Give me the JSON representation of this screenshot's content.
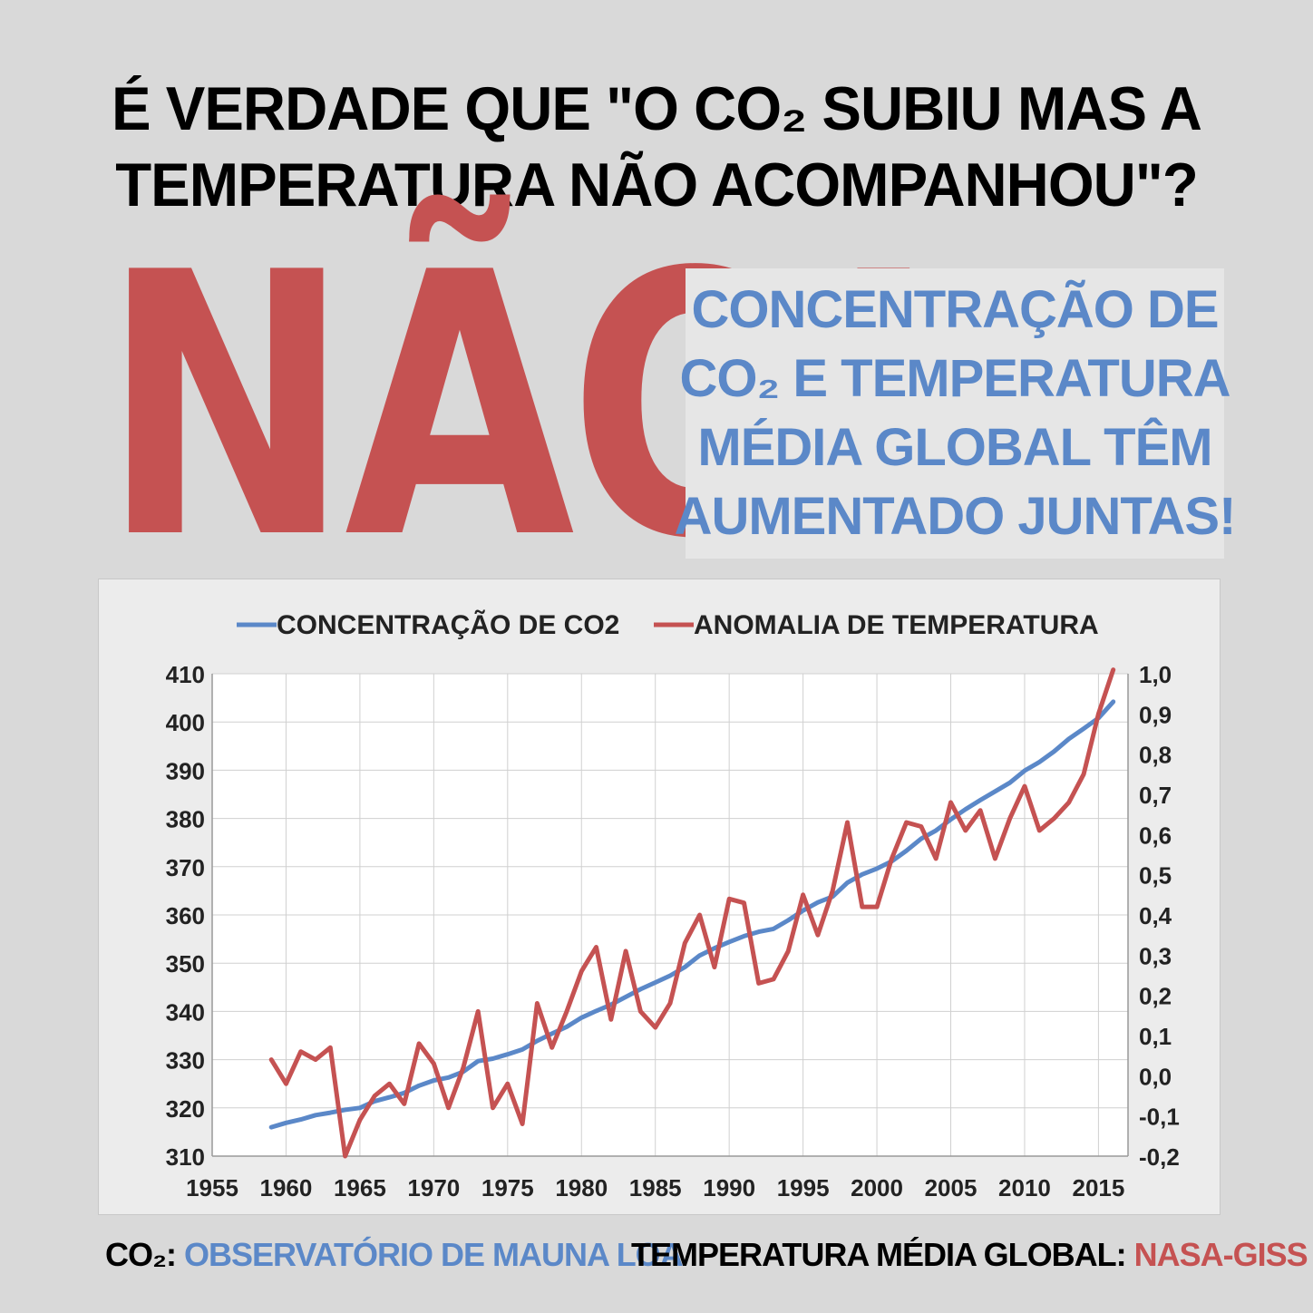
{
  "headline": {
    "line1": "É VERDADE QUE \"O CO₂ SUBIU MAS A",
    "line2": "TEMPERATURA NÃO ACOMPANHOU\"?"
  },
  "answer": "NÃO!",
  "callout": {
    "lines": [
      "CONCENTRAÇÃO DE",
      "CO₂ E TEMPERATURA",
      "MÉDIA GLOBAL TÊM",
      "AUMENTADO JUNTAS!"
    ]
  },
  "colors": {
    "background": "#d9d9d9",
    "co2_series": "#5b88c8",
    "temperature_series": "#c55252",
    "callout_bg": "#e6e6e6"
  },
  "footer": {
    "co2_label": "CO₂:",
    "co2_source": "OBSERVATÓRIO DE MAUNA LOA",
    "temp_label": "TEMPERATURA MÉDIA GLOBAL:",
    "temp_source": "NASA-GISS"
  },
  "chart_data": {
    "type": "line",
    "legend_placement": "top",
    "grid": true,
    "xlim": [
      1955,
      2017
    ],
    "x_ticks": [
      "1955",
      "1960",
      "1965",
      "1970",
      "1975",
      "1980",
      "1985",
      "1990",
      "1995",
      "2000",
      "2005",
      "2010",
      "2015"
    ],
    "y_left_ticks": [
      "310",
      "320",
      "330",
      "340",
      "350",
      "360",
      "370",
      "380",
      "390",
      "400",
      "410"
    ],
    "y_right_ticks": [
      "1,0",
      "0,9",
      "0,8",
      "0,7",
      "0,6",
      "0,5",
      "0,4",
      "0,3",
      "0,2",
      "0,1",
      "0,0",
      "-0,1",
      "-0,2"
    ],
    "ylim_left": [
      310,
      410
    ],
    "ylim_right": [
      -0.2,
      1.0
    ],
    "x": [
      1959,
      1960,
      1961,
      1962,
      1963,
      1964,
      1965,
      1966,
      1967,
      1968,
      1969,
      1970,
      1971,
      1972,
      1973,
      1974,
      1975,
      1976,
      1977,
      1978,
      1979,
      1980,
      1981,
      1982,
      1983,
      1984,
      1985,
      1986,
      1987,
      1988,
      1989,
      1990,
      1991,
      1992,
      1993,
      1994,
      1995,
      1996,
      1997,
      1998,
      1999,
      2000,
      2001,
      2002,
      2003,
      2004,
      2005,
      2006,
      2007,
      2008,
      2009,
      2010,
      2011,
      2012,
      2013,
      2014,
      2015,
      2016
    ],
    "series": [
      {
        "name": "CONCENTRAÇÃO DE CO2",
        "axis": "left",
        "values": [
          316.0,
          316.9,
          317.6,
          318.5,
          319.0,
          319.6,
          320.0,
          321.4,
          322.2,
          323.1,
          324.6,
          325.7,
          326.3,
          327.5,
          329.7,
          330.2,
          331.1,
          332.1,
          333.9,
          335.4,
          336.8,
          338.7,
          340.1,
          341.4,
          343.0,
          344.6,
          346.0,
          347.4,
          349.2,
          351.6,
          353.1,
          354.4,
          355.6,
          356.5,
          357.1,
          358.9,
          360.9,
          362.6,
          363.8,
          366.7,
          368.4,
          369.6,
          371.1,
          373.3,
          375.8,
          377.5,
          379.8,
          381.9,
          383.8,
          385.6,
          387.4,
          389.9,
          391.7,
          393.9,
          396.5,
          398.6,
          400.8,
          404.2
        ]
      },
      {
        "name": "ANOMALIA DE TEMPERATURA",
        "axis": "right",
        "values": [
          0.04,
          -0.02,
          0.06,
          0.04,
          0.07,
          -0.2,
          -0.11,
          -0.05,
          -0.02,
          -0.07,
          0.08,
          0.03,
          -0.08,
          0.02,
          0.16,
          -0.08,
          -0.02,
          -0.12,
          0.18,
          0.07,
          0.16,
          0.26,
          0.32,
          0.14,
          0.31,
          0.16,
          0.12,
          0.18,
          0.33,
          0.4,
          0.27,
          0.44,
          0.43,
          0.23,
          0.24,
          0.31,
          0.45,
          0.35,
          0.46,
          0.63,
          0.42,
          0.42,
          0.54,
          0.63,
          0.62,
          0.54,
          0.68,
          0.61,
          0.66,
          0.54,
          0.64,
          0.72,
          0.61,
          0.64,
          0.68,
          0.75,
          0.9,
          1.01
        ]
      }
    ]
  }
}
